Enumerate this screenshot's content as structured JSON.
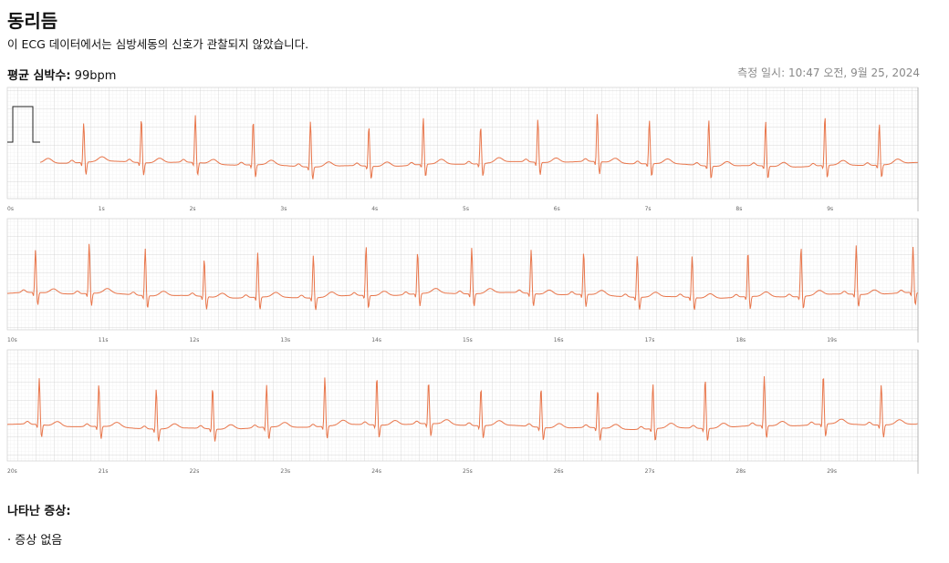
{
  "header": {
    "title": "동리듬",
    "description": "이 ECG 데이터에서는 심방세동의 신호가 관찰되지 않았습니다.",
    "heart_rate_label": "평균 심박수:",
    "heart_rate": "99bpm",
    "recorded": "측정 일시: 10:47 오전, 9월 25, 2024"
  },
  "strips": [
    {
      "time_labels": [
        "0s",
        "1s",
        "2s",
        "3s",
        "4s",
        "5s",
        "6s",
        "7s",
        "8s",
        "9s"
      ]
    },
    {
      "time_labels": [
        "10s",
        "11s",
        "12s",
        "13s",
        "14s",
        "15s",
        "16s",
        "17s",
        "18s",
        "19s"
      ]
    },
    {
      "time_labels": [
        "20s",
        "21s",
        "22s",
        "23s",
        "24s",
        "25s",
        "26s",
        "27s",
        "28s",
        "29s"
      ]
    }
  ],
  "symptoms": {
    "title": "나타난 증상:",
    "items": [
      "· 증상 없음"
    ]
  }
}
